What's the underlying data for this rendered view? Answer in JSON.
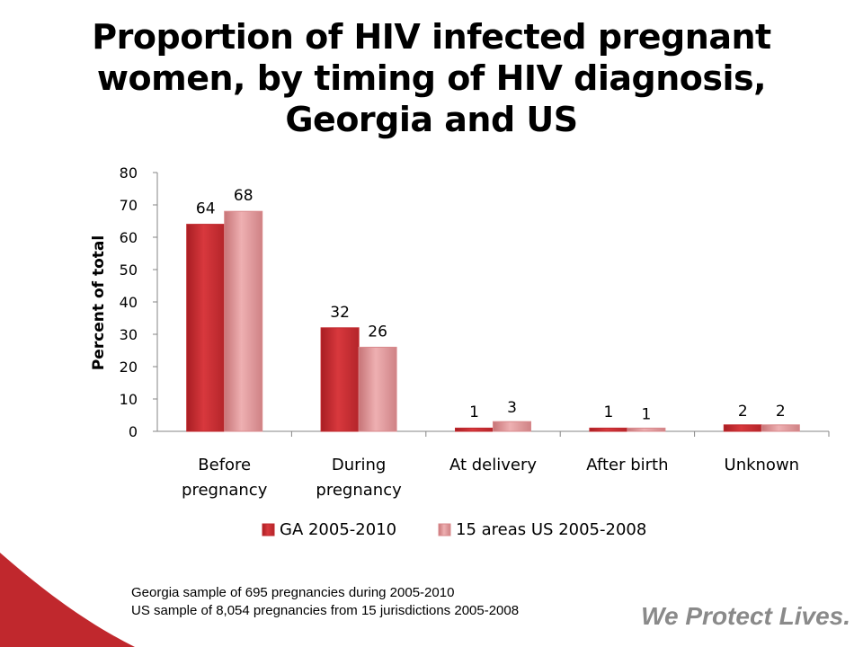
{
  "chart_data": {
    "type": "bar",
    "title_lines": [
      "Proportion of HIV infected pregnant",
      "women, by timing of HIV diagnosis,",
      "Georgia and US"
    ],
    "ylabel": "Percent of total",
    "ylim": [
      0,
      80
    ],
    "yticks": [
      "0",
      "10",
      "20",
      "30",
      "40",
      "50",
      "60",
      "70",
      "80"
    ],
    "categories": [
      [
        "Before",
        "pregnancy"
      ],
      [
        "During",
        "pregnancy"
      ],
      [
        "At  delivery"
      ],
      [
        "After birth"
      ],
      [
        "Unknown"
      ]
    ],
    "series": [
      {
        "name": "GA 2005-2010",
        "values": [
          64,
          32,
          1,
          1,
          2
        ],
        "labels": [
          "64",
          "32",
          "1",
          "1",
          "2"
        ],
        "color": "#c0282d"
      },
      {
        "name": "15 areas US 2005-2008",
        "values": [
          68,
          26,
          3,
          1,
          2
        ],
        "labels": [
          "68",
          "26",
          "3",
          "1",
          "2"
        ],
        "color": "#d9898c"
      }
    ],
    "legend_position": "bottom",
    "grid": false
  },
  "notes": [
    "Georgia sample of  695 pregnancies during 2005-2010",
    "US sample of 8,054 pregnancies from 15 jurisdictions 2005-2008"
  ],
  "tagline": "We Protect Lives.",
  "colors": {
    "accent": "#c0282d",
    "wave": "#c0282d"
  }
}
